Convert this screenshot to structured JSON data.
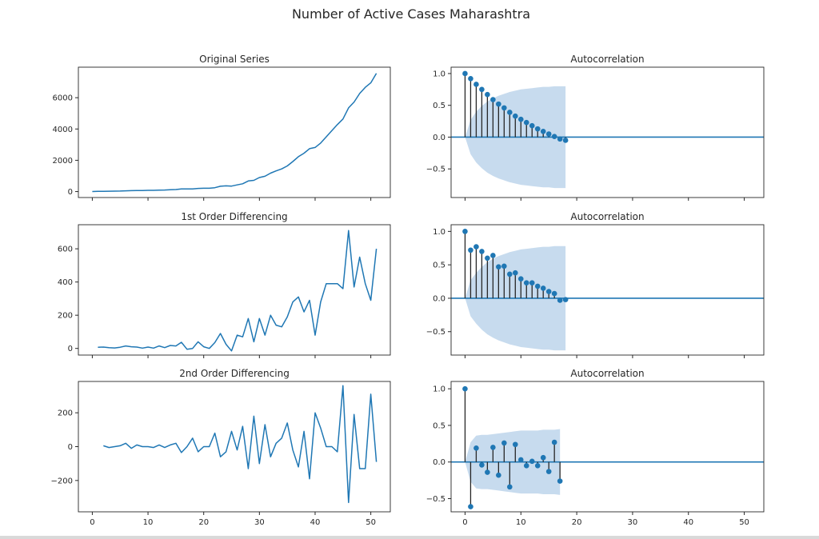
{
  "figure_title": "Number of Active Cases Maharashtra",
  "colors": {
    "line": "#1f77b4",
    "stem": "#262626",
    "marker": "#1f77b4",
    "band": "#a9c8e5",
    "axis": "#262626"
  },
  "chart_data": [
    {
      "id": "original",
      "type": "line",
      "title": "Original Series",
      "xlim": [
        -2.5,
        53.5
      ],
      "ylim": [
        -380,
        7950
      ],
      "yticks": [
        0,
        2000,
        4000,
        6000
      ],
      "yticklabels": [
        "0",
        "2000",
        "4000",
        "6000"
      ],
      "xticks": [
        0,
        10,
        20,
        30,
        40,
        50
      ],
      "xticklabels": [],
      "x": [
        0,
        1,
        2,
        3,
        4,
        5,
        6,
        7,
        8,
        9,
        10,
        11,
        12,
        13,
        14,
        15,
        16,
        17,
        18,
        19,
        20,
        21,
        22,
        23,
        24,
        25,
        26,
        27,
        28,
        29,
        30,
        31,
        32,
        33,
        34,
        35,
        36,
        37,
        38,
        39,
        40,
        41,
        42,
        43,
        44,
        45,
        46,
        47,
        48,
        49,
        50,
        51
      ],
      "y": [
        5,
        12,
        20,
        25,
        28,
        35,
        50,
        60,
        68,
        70,
        78,
        80,
        95,
        100,
        118,
        133,
        170,
        165,
        165,
        205,
        215,
        215,
        250,
        340,
        365,
        350,
        430,
        500,
        680,
        720,
        900,
        980,
        1180,
        1320,
        1450,
        1640,
        1920,
        2230,
        2450,
        2740,
        2820,
        3100,
        3500,
        3890,
        4280,
        4640,
        5350,
        5720,
        6270,
        6660,
        6950,
        7550
      ]
    },
    {
      "id": "acf-original",
      "type": "stem",
      "title": "Autocorrelation",
      "xlim": [
        -2.5,
        53.5
      ],
      "ylim": [
        -0.95,
        1.1
      ],
      "yticks": [
        -0.5,
        0.0,
        0.5,
        1.0
      ],
      "yticklabels": [
        "−0.5",
        "0.0",
        "0.5",
        "1.0"
      ],
      "xticks": [
        0,
        10,
        20,
        30,
        40,
        50
      ],
      "xticklabels": [],
      "lags": [
        0,
        1,
        2,
        3,
        4,
        5,
        6,
        7,
        8,
        9,
        10,
        11,
        12,
        13,
        14,
        15,
        16,
        17,
        18
      ],
      "values": [
        1.0,
        0.92,
        0.83,
        0.75,
        0.67,
        0.59,
        0.52,
        0.46,
        0.39,
        0.33,
        0.28,
        0.23,
        0.18,
        0.13,
        0.09,
        0.05,
        0.01,
        -0.03,
        -0.05
      ],
      "conf_band": [
        0.0,
        0.27,
        0.4,
        0.49,
        0.56,
        0.61,
        0.65,
        0.68,
        0.71,
        0.73,
        0.75,
        0.76,
        0.77,
        0.78,
        0.79,
        0.79,
        0.8,
        0.8,
        0.8
      ]
    },
    {
      "id": "first-diff",
      "type": "line",
      "title": "1st Order Differencing",
      "xlim": [
        -2.5,
        53.5
      ],
      "ylim": [
        -40,
        745
      ],
      "yticks": [
        0,
        200,
        400,
        600
      ],
      "yticklabels": [
        "0",
        "200",
        "400",
        "600"
      ],
      "xticks": [
        0,
        10,
        20,
        30,
        40,
        50
      ],
      "xticklabels": [],
      "x": [
        1,
        2,
        3,
        4,
        5,
        6,
        7,
        8,
        9,
        10,
        11,
        12,
        13,
        14,
        15,
        16,
        17,
        18,
        19,
        20,
        21,
        22,
        23,
        24,
        25,
        26,
        27,
        28,
        29,
        30,
        31,
        32,
        33,
        34,
        35,
        36,
        37,
        38,
        39,
        40,
        41,
        42,
        43,
        44,
        45,
        46,
        47,
        48,
        49,
        50,
        51
      ],
      "y": [
        7,
        8,
        5,
        3,
        7,
        15,
        10,
        8,
        2,
        8,
        2,
        15,
        5,
        18,
        15,
        37,
        -5,
        0,
        40,
        10,
        0,
        35,
        90,
        25,
        -15,
        80,
        70,
        180,
        40,
        180,
        80,
        200,
        140,
        130,
        190,
        280,
        310,
        220,
        290,
        80,
        280,
        390,
        390,
        390,
        360,
        710,
        370,
        550,
        390,
        290,
        600
      ]
    },
    {
      "id": "acf-first-diff",
      "type": "stem",
      "title": "Autocorrelation",
      "xlim": [
        -2.5,
        53.5
      ],
      "ylim": [
        -0.85,
        1.1
      ],
      "yticks": [
        -0.5,
        0.0,
        0.5,
        1.0
      ],
      "yticklabels": [
        "−0.5",
        "0.0",
        "0.5",
        "1.0"
      ],
      "xticks": [
        0,
        10,
        20,
        30,
        40,
        50
      ],
      "xticklabels": [],
      "lags": [
        0,
        1,
        2,
        3,
        4,
        5,
        6,
        7,
        8,
        9,
        10,
        11,
        12,
        13,
        14,
        15,
        16,
        17,
        18
      ],
      "values": [
        1.0,
        0.72,
        0.77,
        0.7,
        0.6,
        0.64,
        0.47,
        0.48,
        0.36,
        0.38,
        0.29,
        0.23,
        0.23,
        0.18,
        0.15,
        0.1,
        0.07,
        -0.03,
        -0.02
      ],
      "conf_band": [
        0.0,
        0.27,
        0.38,
        0.47,
        0.54,
        0.59,
        0.63,
        0.66,
        0.69,
        0.71,
        0.73,
        0.74,
        0.75,
        0.76,
        0.77,
        0.77,
        0.78,
        0.78,
        0.78
      ]
    },
    {
      "id": "second-diff",
      "type": "line",
      "title": "2nd Order Differencing",
      "xlim": [
        -2.5,
        53.5
      ],
      "ylim": [
        -385,
        385
      ],
      "yticks": [
        -200,
        0,
        200
      ],
      "yticklabels": [
        "−200",
        "0",
        "200"
      ],
      "xticks": [
        0,
        10,
        20,
        30,
        40,
        50
      ],
      "xticklabels": [
        "0",
        "10",
        "20",
        "30",
        "40",
        "50"
      ],
      "x": [
        2,
        3,
        4,
        5,
        6,
        7,
        8,
        9,
        10,
        11,
        12,
        13,
        14,
        15,
        16,
        17,
        18,
        19,
        20,
        21,
        22,
        23,
        24,
        25,
        26,
        27,
        28,
        29,
        30,
        31,
        32,
        33,
        34,
        35,
        36,
        37,
        38,
        39,
        40,
        41,
        42,
        43,
        44,
        45,
        46,
        47,
        48,
        49,
        50,
        51
      ],
      "y": [
        5,
        -5,
        0,
        5,
        20,
        -10,
        10,
        0,
        0,
        -5,
        10,
        -5,
        10,
        20,
        -35,
        0,
        50,
        -30,
        0,
        0,
        80,
        -60,
        -30,
        90,
        -20,
        120,
        -130,
        180,
        -100,
        130,
        -60,
        20,
        50,
        140,
        -20,
        -120,
        90,
        -190,
        200,
        110,
        0,
        0,
        -30,
        360,
        -330,
        190,
        -130,
        -130,
        310,
        -90
      ]
    },
    {
      "id": "acf-second-diff",
      "type": "stem",
      "title": "Autocorrelation",
      "xlim": [
        -2.5,
        53.5
      ],
      "ylim": [
        -0.68,
        1.1
      ],
      "yticks": [
        -0.5,
        0.0,
        0.5,
        1.0
      ],
      "yticklabels": [
        "−0.5",
        "0.0",
        "0.5",
        "1.0"
      ],
      "xticks": [
        0,
        10,
        20,
        30,
        40,
        50
      ],
      "xticklabels": [
        "0",
        "10",
        "20",
        "30",
        "40",
        "50"
      ],
      "lags": [
        0,
        1,
        2,
        3,
        4,
        5,
        6,
        7,
        8,
        9,
        10,
        11,
        12,
        13,
        14,
        15,
        16,
        17
      ],
      "values": [
        1.0,
        -0.61,
        0.19,
        -0.04,
        -0.14,
        0.2,
        -0.18,
        0.26,
        -0.34,
        0.24,
        0.03,
        -0.05,
        0.01,
        -0.05,
        0.06,
        -0.13,
        0.27,
        -0.26
      ],
      "conf_band": [
        0.0,
        0.27,
        0.36,
        0.37,
        0.37,
        0.38,
        0.39,
        0.4,
        0.41,
        0.42,
        0.43,
        0.43,
        0.43,
        0.43,
        0.44,
        0.44,
        0.44,
        0.45
      ]
    }
  ]
}
